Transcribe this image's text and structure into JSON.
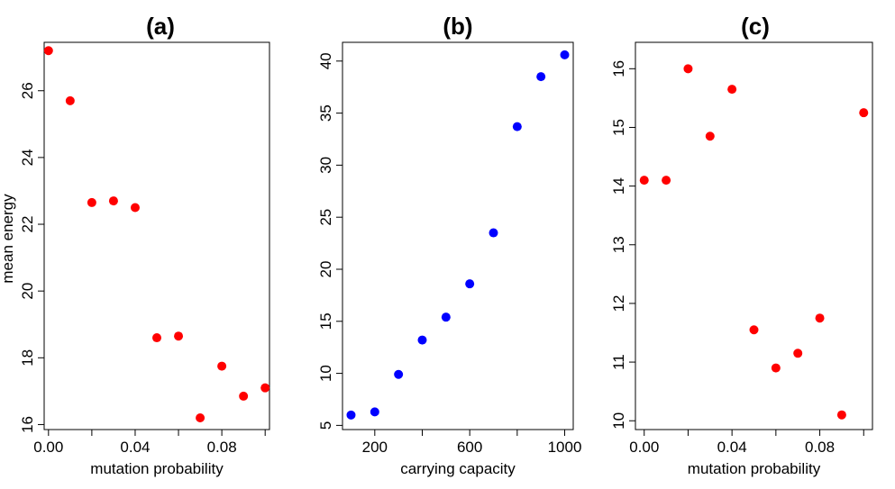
{
  "chart_data": [
    {
      "type": "scatter",
      "title": "(a)",
      "xlabel": "mutation probability",
      "ylabel": "mean energy",
      "color": "#ff0000",
      "x_ticks": [
        "0.00",
        "0.04",
        "0.08"
      ],
      "x_tick_values": [
        0.0,
        0.04,
        0.08
      ],
      "y_ticks": [
        "16",
        "18",
        "20",
        "22",
        "24",
        "26"
      ],
      "y_tick_values": [
        16,
        18,
        20,
        22,
        24,
        26
      ],
      "xlim": [
        -0.002,
        0.102
      ],
      "ylim": [
        15.85,
        27.45
      ],
      "points": [
        {
          "x": 0.0,
          "y": 27.2
        },
        {
          "x": 0.01,
          "y": 25.7
        },
        {
          "x": 0.02,
          "y": 22.65
        },
        {
          "x": 0.03,
          "y": 22.7
        },
        {
          "x": 0.04,
          "y": 22.5
        },
        {
          "x": 0.05,
          "y": 18.6
        },
        {
          "x": 0.06,
          "y": 18.65
        },
        {
          "x": 0.07,
          "y": 16.2
        },
        {
          "x": 0.08,
          "y": 17.75
        },
        {
          "x": 0.09,
          "y": 16.85
        },
        {
          "x": 0.1,
          "y": 17.1
        }
      ]
    },
    {
      "type": "scatter",
      "title": "(b)",
      "xlabel": "carrying capacity",
      "ylabel": "",
      "color": "#0000ff",
      "x_ticks": [
        "200",
        "600",
        "1000"
      ],
      "x_tick_values": [
        200,
        600,
        1000
      ],
      "y_ticks": [
        "5",
        "10",
        "15",
        "20",
        "25",
        "30",
        "35",
        "40"
      ],
      "y_tick_values": [
        5,
        10,
        15,
        20,
        25,
        30,
        35,
        40
      ],
      "xlim": [
        64,
        1036
      ],
      "ylim": [
        4.6,
        41.8
      ],
      "points": [
        {
          "x": 100,
          "y": 6.0
        },
        {
          "x": 200,
          "y": 6.3
        },
        {
          "x": 300,
          "y": 9.9
        },
        {
          "x": 400,
          "y": 13.2
        },
        {
          "x": 500,
          "y": 15.4
        },
        {
          "x": 600,
          "y": 18.6
        },
        {
          "x": 700,
          "y": 23.5
        },
        {
          "x": 800,
          "y": 33.7
        },
        {
          "x": 900,
          "y": 38.5
        },
        {
          "x": 1000,
          "y": 40.6
        }
      ]
    },
    {
      "type": "scatter",
      "title": "(c)",
      "xlabel": "mutation probability",
      "ylabel": "",
      "color": "#ff0000",
      "x_ticks": [
        "0.00",
        "0.04",
        "0.08"
      ],
      "x_tick_values": [
        0.0,
        0.04,
        0.08
      ],
      "y_ticks": [
        "10",
        "11",
        "12",
        "13",
        "14",
        "15",
        "16"
      ],
      "y_tick_values": [
        10,
        11,
        12,
        13,
        14,
        15,
        16
      ],
      "xlim": [
        -0.004,
        0.104
      ],
      "ylim": [
        9.85,
        16.45
      ],
      "points": [
        {
          "x": 0.0,
          "y": 14.1
        },
        {
          "x": 0.01,
          "y": 14.1
        },
        {
          "x": 0.02,
          "y": 16.0
        },
        {
          "x": 0.03,
          "y": 14.85
        },
        {
          "x": 0.04,
          "y": 15.65
        },
        {
          "x": 0.05,
          "y": 11.55
        },
        {
          "x": 0.06,
          "y": 10.9
        },
        {
          "x": 0.07,
          "y": 11.15
        },
        {
          "x": 0.08,
          "y": 11.75
        },
        {
          "x": 0.09,
          "y": 10.1
        },
        {
          "x": 0.1,
          "y": 15.25
        }
      ]
    }
  ]
}
